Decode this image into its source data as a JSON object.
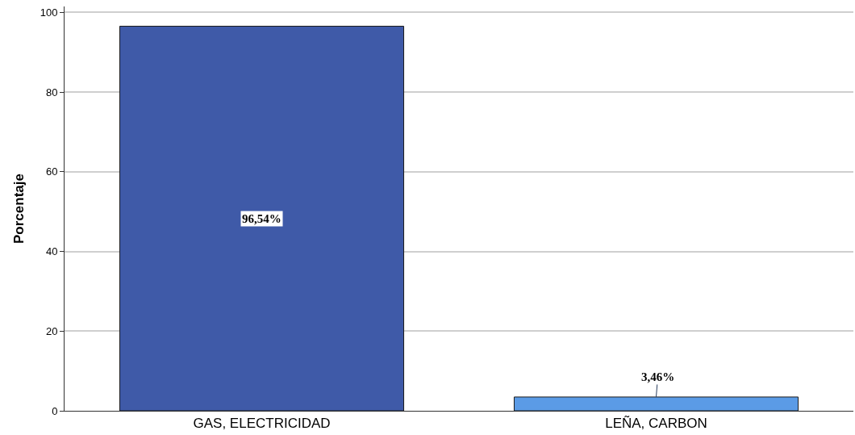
{
  "chart_data": {
    "type": "bar",
    "ylabel": "Porcentaje",
    "categories": [
      "GAS, ELECTRICIDAD",
      "LEÑA, CARBON"
    ],
    "values": [
      96.54,
      3.46
    ],
    "colors": [
      "#3f5aa8",
      "#5b9be6"
    ],
    "value_labels": [
      "96,54%",
      "3,46%"
    ],
    "ylim": [
      0,
      101.5
    ],
    "yticks": [
      0,
      20,
      40,
      60,
      80,
      100
    ],
    "grid": "y"
  }
}
